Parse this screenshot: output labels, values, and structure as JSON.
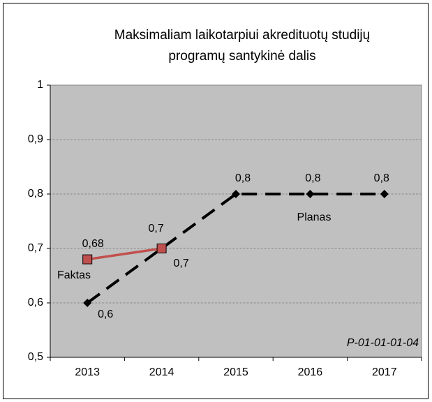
{
  "chart_data": {
    "type": "line",
    "title": [
      "Maksimaliam laikotarpiui akredituotų studijų",
      "programų santykinė dalis"
    ],
    "annotation": "P-01-01-01-04",
    "categories": [
      "2013",
      "2014",
      "2015",
      "2016",
      "2017"
    ],
    "series": [
      {
        "name": "Planas",
        "color": "#000000",
        "dashed": true,
        "marker": "diamond",
        "values": [
          0.6,
          0.7,
          0.8,
          0.8,
          0.8
        ],
        "value_labels": [
          "0,6",
          "0,7",
          "0,8",
          "0,8",
          "0,8"
        ]
      },
      {
        "name": "Faktas",
        "color": "#c0504d",
        "dashed": false,
        "marker": "square",
        "values": [
          0.68,
          0.7,
          null,
          null,
          null
        ],
        "value_labels": [
          "0,68",
          "0,7",
          null,
          null,
          null
        ]
      }
    ],
    "ylim": [
      0.5,
      1
    ],
    "yticks": [
      {
        "value": 0.5,
        "label": "0,5"
      },
      {
        "value": 0.6,
        "label": "0,6"
      },
      {
        "value": 0.7,
        "label": "0,7"
      },
      {
        "value": 0.8,
        "label": "0,8"
      },
      {
        "value": 0.9,
        "label": "0,9"
      },
      1
    ],
    "grid": true,
    "background": "#c0c0c0"
  }
}
